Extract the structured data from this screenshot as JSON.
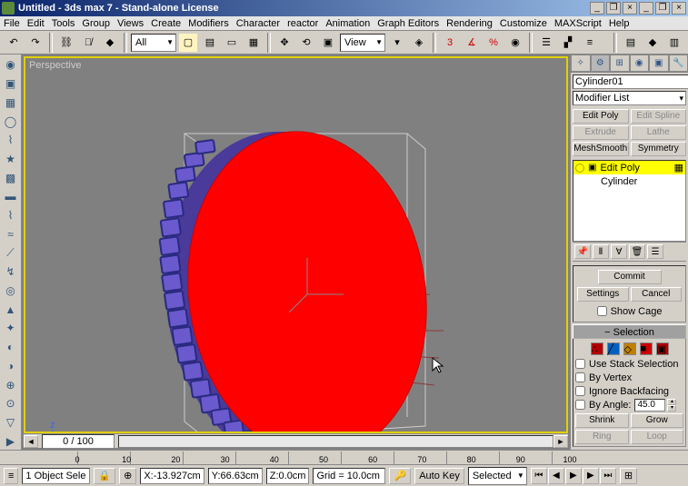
{
  "window": {
    "title": "Untitled - 3ds max 7 - Stand-alone License"
  },
  "menu": [
    "File",
    "Edit",
    "Tools",
    "Group",
    "Views",
    "Create",
    "Modifiers",
    "Character",
    "reactor",
    "Animation",
    "Graph Editors",
    "Rendering",
    "Customize",
    "MAXScript",
    "Help"
  ],
  "toolbar": {
    "filter": "All",
    "viewmode": "View"
  },
  "viewport": {
    "label": "Perspective",
    "frameinfo": "0 / 100"
  },
  "object": {
    "name": "Cylinder01",
    "color": "#8060e0"
  },
  "modifier_dropdown": "Modifier List",
  "mod_buttons": [
    {
      "label": "Edit Poly",
      "disabled": false
    },
    {
      "label": "Edit Spline",
      "disabled": true
    },
    {
      "label": "Extrude",
      "disabled": true
    },
    {
      "label": "Lathe",
      "disabled": true
    },
    {
      "label": "MeshSmooth",
      "disabled": false
    },
    {
      "label": "Symmetry",
      "disabled": false
    }
  ],
  "stack": [
    {
      "label": "Edit Poly",
      "active": true,
      "expandable": true
    },
    {
      "label": "Cylinder",
      "active": false,
      "expandable": false
    }
  ],
  "commit_section": {
    "commit": "Commit",
    "settings": "Settings",
    "cancel": "Cancel",
    "showcage": "Show Cage"
  },
  "selection": {
    "header": "Selection",
    "icons_colors": [
      "#b00000",
      "#0060c0",
      "#c08000",
      "#00a000",
      "#b00000"
    ],
    "use_stack": "Use Stack Selection",
    "by_vertex": "By Vertex",
    "ignore_backfacing": "Ignore Backfacing",
    "by_angle": "By Angle:",
    "angle_val": "45.0",
    "shrink": "Shrink",
    "grow": "Grow",
    "ring": "Ring",
    "loop": "Loop"
  },
  "timeline_ticks": [
    "0",
    "10",
    "20",
    "30",
    "40",
    "50",
    "60",
    "70",
    "80",
    "90",
    "100"
  ],
  "status": {
    "sel": "1 Object Sele",
    "x": "-13.927cm",
    "y": "66.63cm",
    "z": "0.0cm",
    "grid": "Grid = 10.0cm",
    "autokey": "Auto Key",
    "selected": "Selected"
  },
  "cylinder": {
    "face_color": "#ff0000",
    "tread_color": "#6a5acd",
    "edge_color": "#2a2a80",
    "bbox_color": "#cccccc",
    "grid_color": "#8b3a3a"
  }
}
